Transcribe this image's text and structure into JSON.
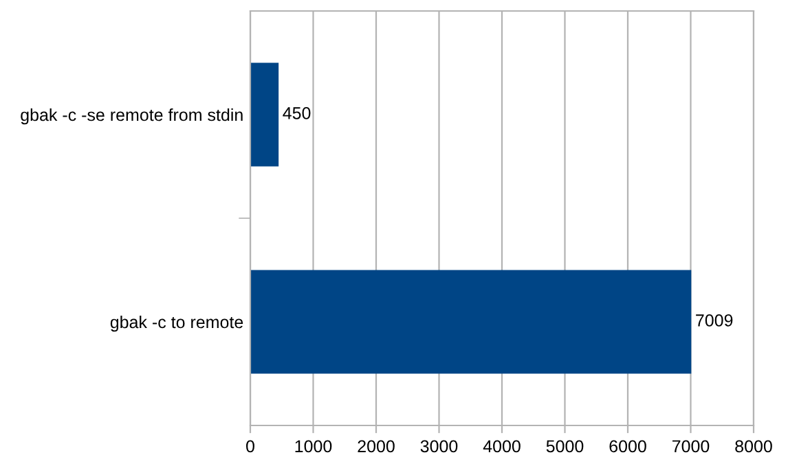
{
  "chart_data": {
    "type": "bar",
    "orientation": "horizontal",
    "categories": [
      "gbak -c -se remote from stdin",
      "gbak -c to remote"
    ],
    "values": [
      450,
      7009
    ],
    "color": "#004586",
    "xlim": [
      0,
      8000
    ],
    "xticks": [
      0,
      1000,
      2000,
      3000,
      4000,
      5000,
      6000,
      7000,
      8000
    ],
    "grid": "x",
    "data_labels": true
  }
}
